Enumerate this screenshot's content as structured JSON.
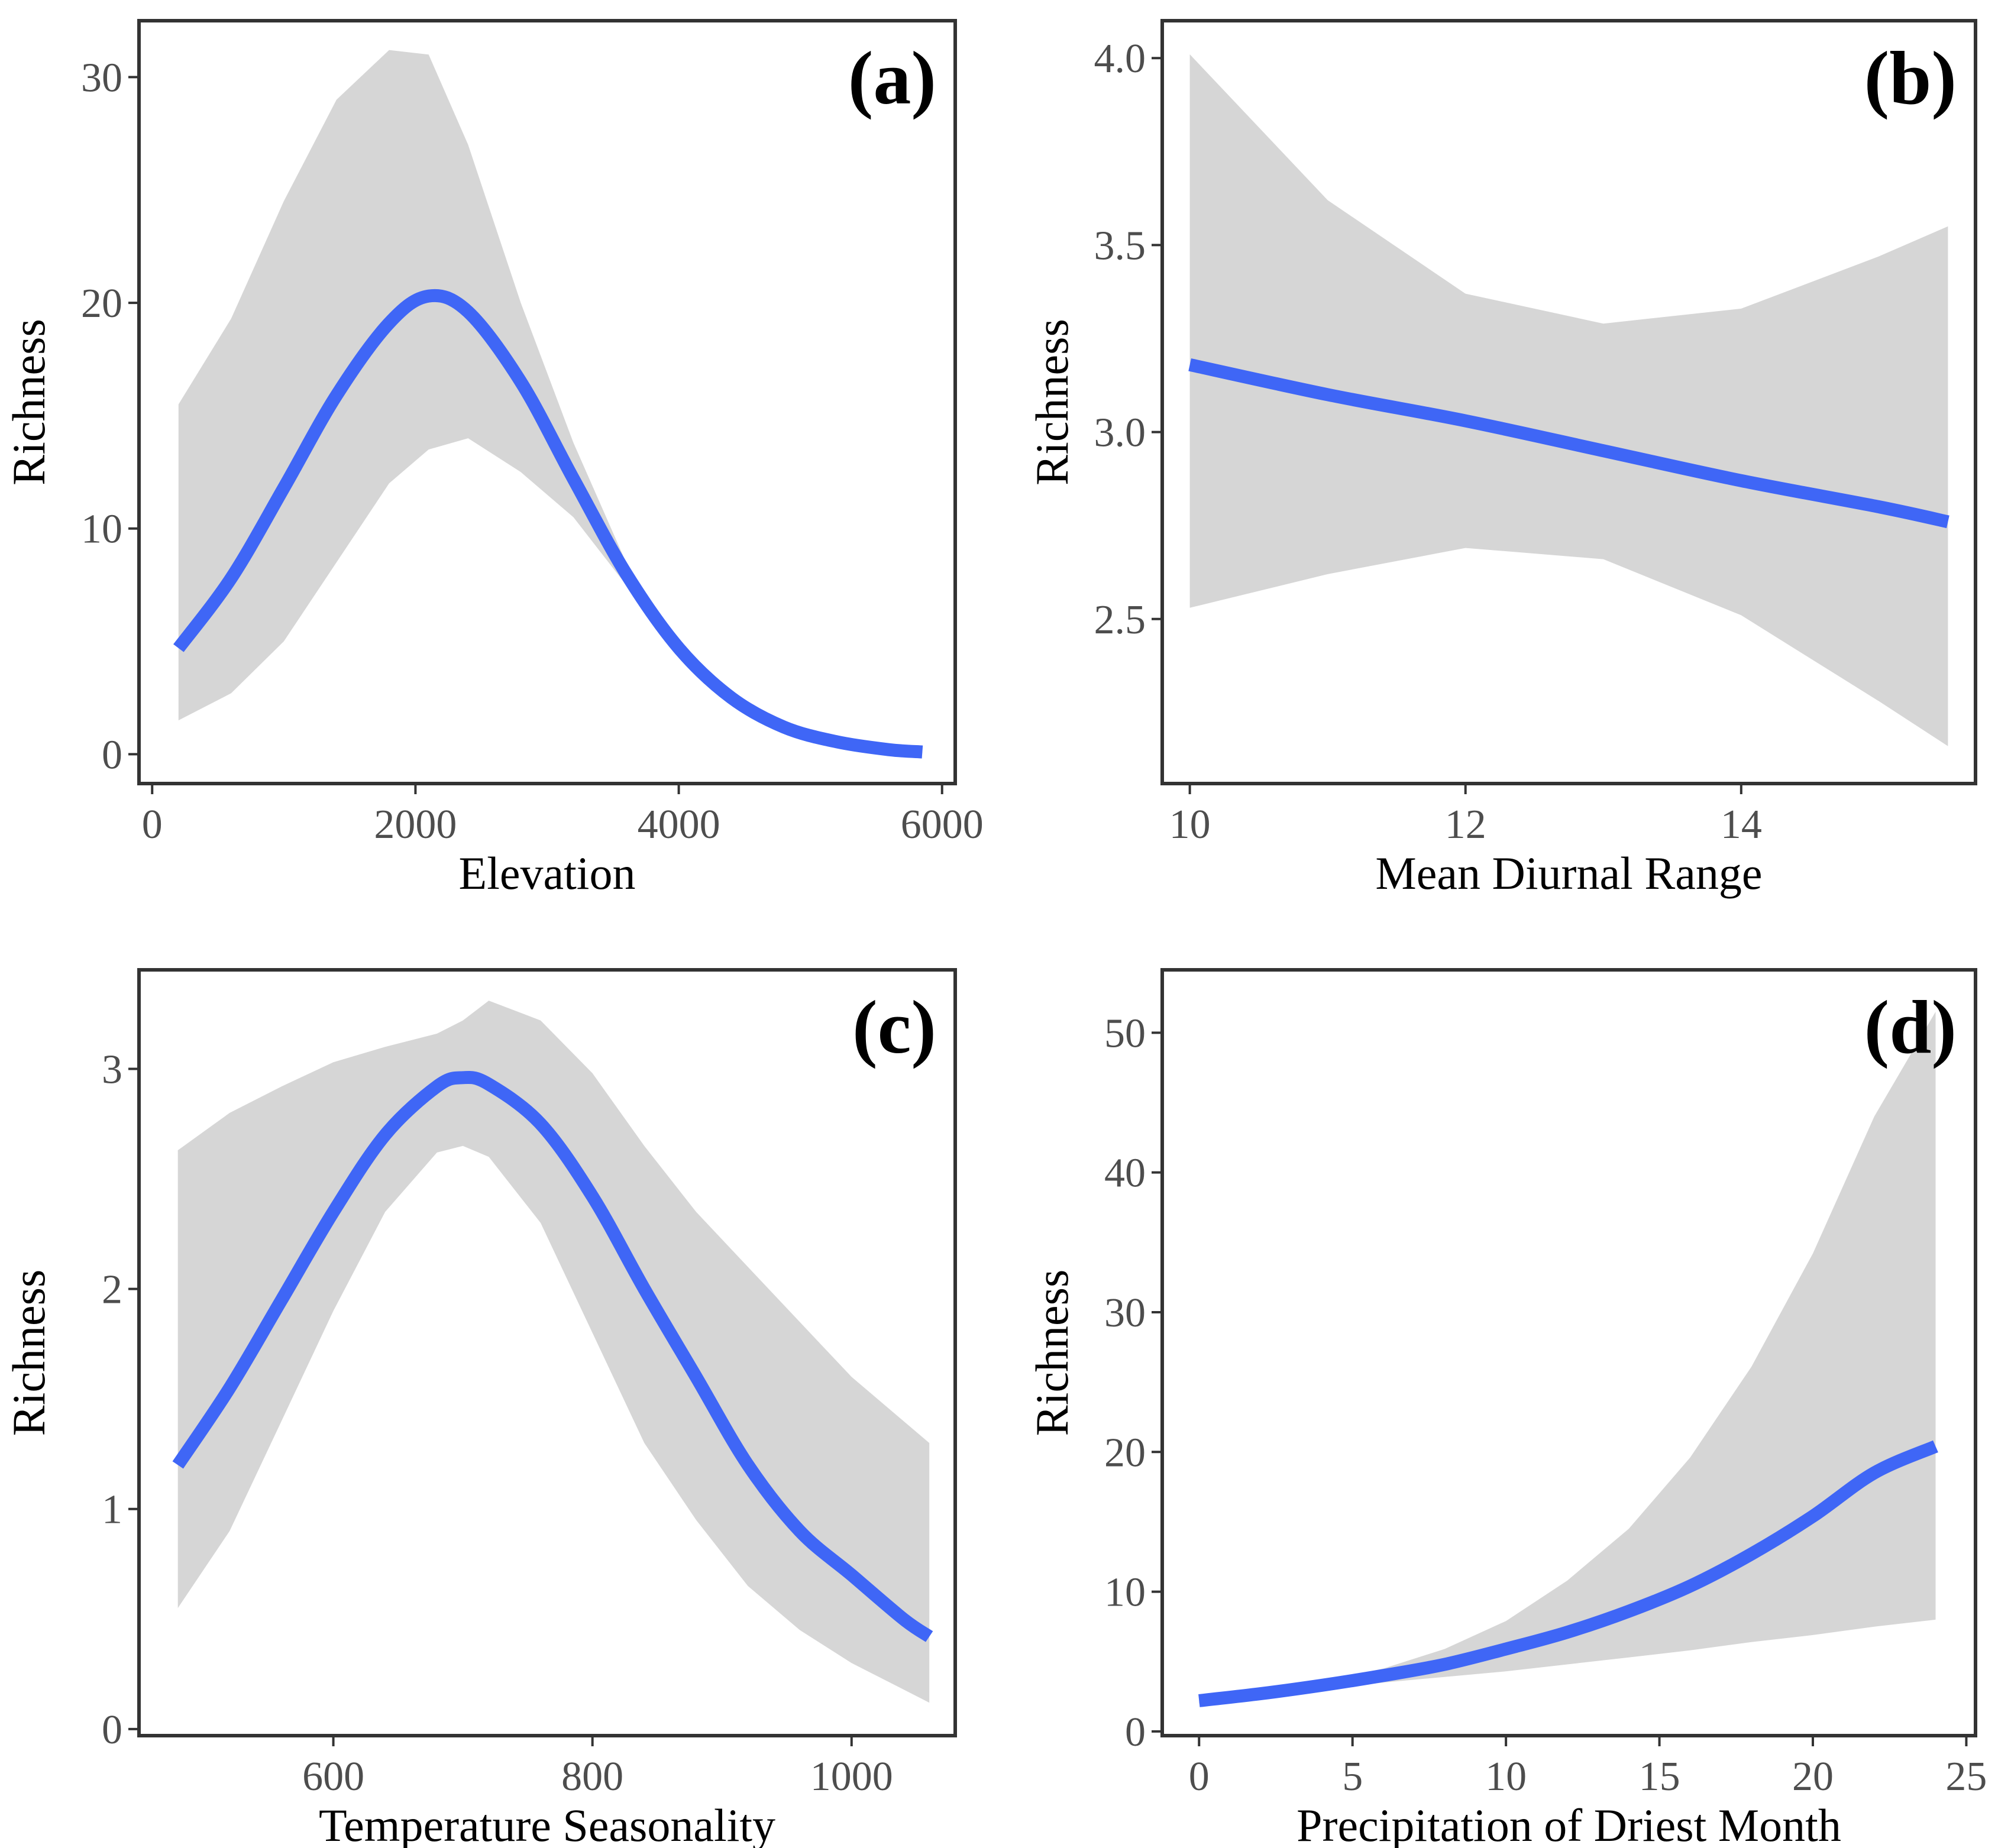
{
  "colors": {
    "line": "#3f66f6",
    "ribbon": "#d6d6d6",
    "frame": "#333333",
    "tick_label": "#4d4d4d"
  },
  "chart_data": [
    {
      "type": "line",
      "panel": "(a)",
      "xlabel": "Elevation",
      "ylabel": "Richness",
      "xlim": [
        -100,
        6100
      ],
      "ylim": [
        -1.3,
        32.5
      ],
      "xticks": [
        0,
        2000,
        4000,
        6000
      ],
      "xtick_labels": [
        "0",
        "2000",
        "4000",
        "6000"
      ],
      "yticks": [
        0,
        10,
        20,
        30
      ],
      "ytick_labels": [
        "0",
        "10",
        "20",
        "30"
      ],
      "series": [
        {
          "name": "fit",
          "x": [
            200,
            600,
            1000,
            1400,
            1800,
            2100,
            2400,
            2800,
            3200,
            3600,
            4000,
            4400,
            4800,
            5200,
            5600,
            5850
          ],
          "y": [
            4.7,
            7.8,
            11.8,
            15.9,
            19.1,
            20.3,
            19.6,
            16.5,
            12.2,
            8.0,
            4.7,
            2.5,
            1.2,
            0.55,
            0.2,
            0.1
          ],
          "lower": [
            1.5,
            2.7,
            5.0,
            8.5,
            12.0,
            13.5,
            14.0,
            12.5,
            10.5,
            7.5,
            4.5,
            2.4,
            1.1,
            0.5,
            0.2,
            0.05
          ],
          "upper": [
            15.5,
            19.3,
            24.5,
            29.0,
            31.2,
            31.0,
            27.0,
            20.0,
            13.8,
            8.5,
            4.9,
            2.6,
            1.3,
            0.6,
            0.25,
            0.15
          ]
        }
      ]
    },
    {
      "type": "line",
      "panel": "(b)",
      "xlabel": "Mean Diurnal Range",
      "ylabel": "Richness",
      "xlim": [
        9.8,
        15.7
      ],
      "ylim": [
        2.06,
        4.1
      ],
      "xticks": [
        10,
        12,
        14
      ],
      "xtick_labels": [
        "10",
        "12",
        "14"
      ],
      "yticks": [
        2.5,
        3.0,
        3.5,
        4.0
      ],
      "ytick_labels": [
        "2.5",
        "3.0",
        "3.5",
        "4.0"
      ],
      "series": [
        {
          "name": "fit",
          "x": [
            10.0,
            11.0,
            12.0,
            13.0,
            14.0,
            15.0,
            15.5
          ],
          "y": [
            3.18,
            3.1,
            3.03,
            2.95,
            2.87,
            2.8,
            2.76
          ],
          "lower": [
            2.53,
            2.62,
            2.69,
            2.66,
            2.51,
            2.28,
            2.16
          ],
          "upper": [
            4.01,
            3.62,
            3.37,
            3.29,
            3.33,
            3.47,
            3.55
          ]
        }
      ]
    },
    {
      "type": "line",
      "panel": "(c)",
      "xlabel": "Temperature Seasonality",
      "ylabel": "Richness",
      "xlim": [
        450,
        1080
      ],
      "ylim": [
        -0.03,
        3.45
      ],
      "xticks": [
        600,
        800,
        1000
      ],
      "xtick_labels": [
        "600",
        "800",
        "1000"
      ],
      "yticks": [
        0,
        1,
        2,
        3
      ],
      "ytick_labels": [
        "0",
        "1",
        "2",
        "3"
      ],
      "series": [
        {
          "name": "fit",
          "x": [
            480,
            520,
            560,
            600,
            640,
            680,
            700,
            720,
            760,
            800,
            840,
            880,
            920,
            960,
            1000,
            1040,
            1060
          ],
          "y": [
            1.2,
            1.55,
            1.95,
            2.35,
            2.7,
            2.92,
            2.96,
            2.93,
            2.75,
            2.42,
            2.0,
            1.6,
            1.2,
            0.9,
            0.7,
            0.5,
            0.42
          ],
          "lower": [
            0.55,
            0.9,
            1.4,
            1.9,
            2.35,
            2.62,
            2.65,
            2.6,
            2.3,
            1.8,
            1.3,
            0.95,
            0.65,
            0.45,
            0.3,
            0.18,
            0.12
          ],
          "upper": [
            2.63,
            2.8,
            2.92,
            3.03,
            3.1,
            3.16,
            3.22,
            3.31,
            3.22,
            2.98,
            2.65,
            2.35,
            2.1,
            1.85,
            1.6,
            1.4,
            1.3
          ]
        }
      ]
    },
    {
      "type": "line",
      "panel": "(d)",
      "xlabel": "Precipitation of Driest Month",
      "ylabel": "Richness",
      "xlim": [
        -1.2,
        25.3
      ],
      "ylim": [
        -0.3,
        54.5
      ],
      "xticks": [
        0,
        5,
        10,
        15,
        20,
        25
      ],
      "xtick_labels": [
        "0",
        "5",
        "10",
        "15",
        "20",
        "25"
      ],
      "yticks": [
        0,
        10,
        20,
        30,
        40,
        50
      ],
      "ytick_labels": [
        "0",
        "10",
        "20",
        "30",
        "40",
        "50"
      ],
      "series": [
        {
          "name": "fit",
          "x": [
            0,
            2,
            4,
            6,
            8,
            10,
            12,
            14,
            16,
            18,
            20,
            22,
            24
          ],
          "y": [
            2.2,
            2.7,
            3.3,
            4.0,
            4.8,
            5.9,
            7.1,
            8.6,
            10.4,
            12.7,
            15.4,
            18.5,
            20.4
          ],
          "lower": [
            2.0,
            2.5,
            3.0,
            3.5,
            3.9,
            4.3,
            4.8,
            5.3,
            5.8,
            6.4,
            6.9,
            7.5,
            8.0
          ],
          "upper": [
            2.4,
            2.9,
            3.6,
            4.5,
            5.9,
            7.9,
            10.8,
            14.5,
            19.6,
            26.1,
            34.2,
            44.0,
            51.5
          ]
        }
      ]
    }
  ]
}
